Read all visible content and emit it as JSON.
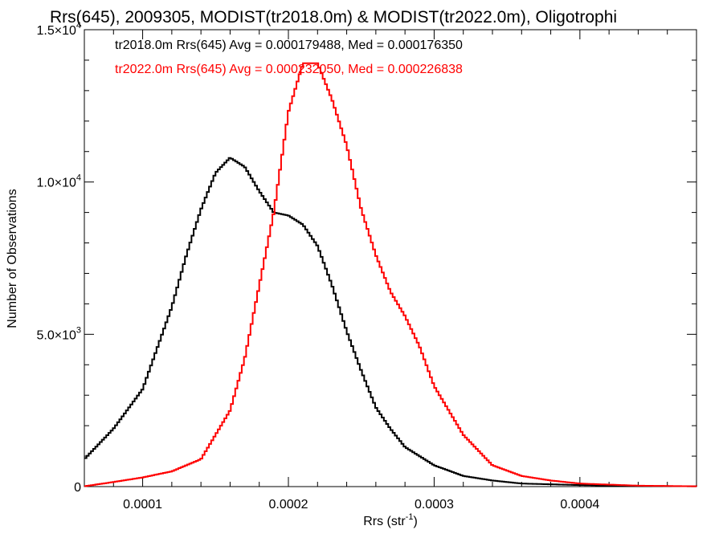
{
  "chart_data": {
    "type": "line",
    "title": "Rrs(645), 2009305, MODIST(tr2018.0m) & MODIST(tr2022.0m), Oligotrophi",
    "xlabel_main": "Rrs (str",
    "xlabel_sup": "-1",
    "xlabel_close": ")",
    "ylabel": "Number of Observations",
    "xlim": [
      6e-05,
      0.00048
    ],
    "ylim": [
      0,
      15000
    ],
    "x_ticks": [
      {
        "value": 0.0001,
        "label": "0.0001"
      },
      {
        "value": 0.0002,
        "label": "0.0002"
      },
      {
        "value": 0.0003,
        "label": "0.0003"
      },
      {
        "value": 0.0004,
        "label": "0.0004"
      }
    ],
    "y_ticks": [
      {
        "value": 0,
        "label": "0",
        "sup": ""
      },
      {
        "value": 5000,
        "label": "5.0×10",
        "sup": "3"
      },
      {
        "value": 10000,
        "label": "1.0×10",
        "sup": "4"
      },
      {
        "value": 15000,
        "label": "1.5×10",
        "sup": "4"
      }
    ],
    "series": [
      {
        "name": "tr2018.0m",
        "color": "#000000",
        "legend": "tr2018.0m Rrs(645) Avg = 0.000179488, Med = 0.000176350",
        "x": [
          6e-05,
          8e-05,
          0.0001,
          0.00012,
          0.00013,
          0.00014,
          0.00015,
          0.00016,
          0.00017,
          0.00018,
          0.00019,
          0.0002,
          0.00021,
          0.00022,
          0.00023,
          0.00024,
          0.00025,
          0.00026,
          0.00027,
          0.00028,
          0.0003,
          0.00032,
          0.00034,
          0.00036,
          0.0004,
          0.00044,
          0.00048
        ],
        "y": [
          900,
          1900,
          3200,
          5900,
          7600,
          9100,
          10300,
          10800,
          10500,
          9700,
          9000,
          8900,
          8600,
          7900,
          6600,
          5100,
          3800,
          2600,
          1900,
          1300,
          700,
          350,
          200,
          100,
          50,
          20,
          10
        ]
      },
      {
        "name": "tr2022.0m",
        "color": "#ff0000",
        "legend": "tr2022.0m Rrs(645) Avg = 0.000232050, Med = 0.000226838",
        "x": [
          6e-05,
          8e-05,
          0.0001,
          0.00012,
          0.00014,
          0.00016,
          0.00017,
          0.00018,
          0.00019,
          0.0002,
          0.00021,
          0.00022,
          0.00023,
          0.00024,
          0.00025,
          0.00026,
          0.00027,
          0.00028,
          0.00029,
          0.0003,
          0.00032,
          0.00034,
          0.00036,
          0.00038,
          0.0004,
          0.00044,
          0.00048
        ],
        "y": [
          10,
          150,
          300,
          500,
          900,
          2500,
          4200,
          6600,
          9000,
          12300,
          13900,
          13900,
          12700,
          11200,
          9100,
          7600,
          6400,
          5600,
          4600,
          3300,
          1700,
          700,
          350,
          200,
          100,
          30,
          10
        ]
      }
    ]
  }
}
